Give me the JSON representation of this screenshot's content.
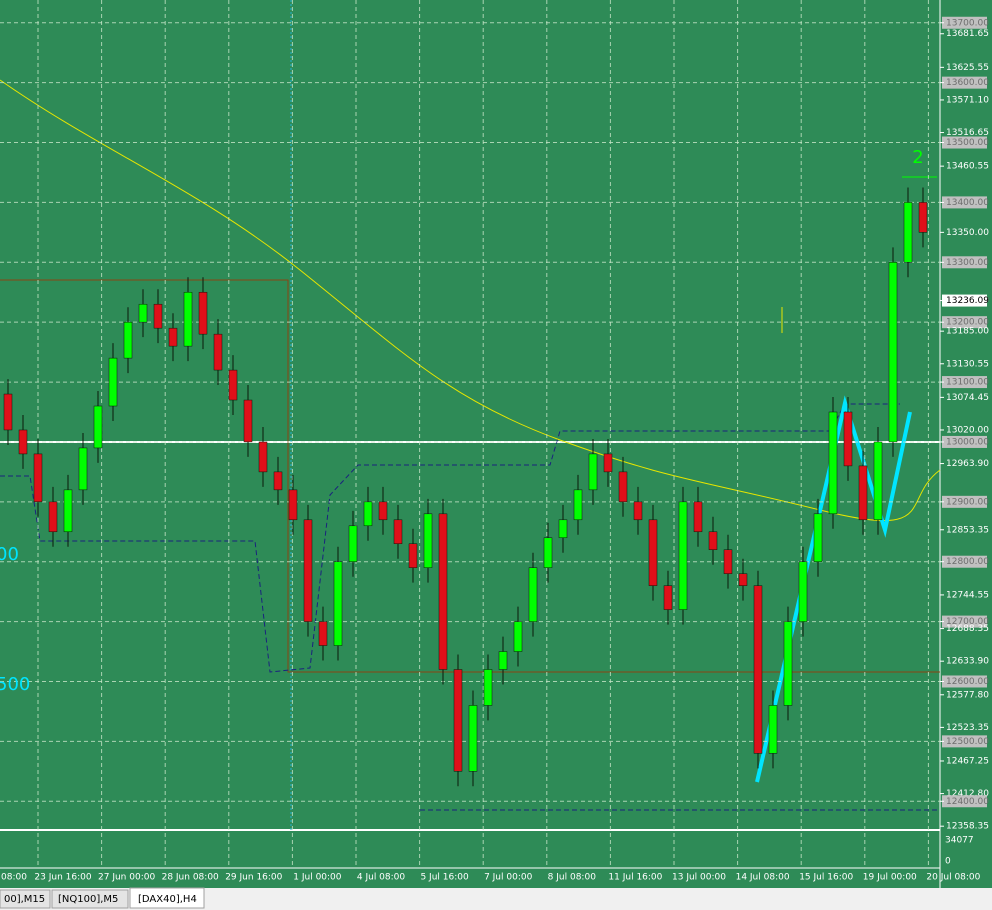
{
  "chart_data": {
    "type": "candlestick",
    "ylim": [
      12352,
      13738
    ],
    "yticks": [
      {
        "value": 13700,
        "label": "13700.00"
      },
      {
        "value": 13681.65,
        "label": "13681.65"
      },
      {
        "value": 13625.55,
        "label": "13625.55"
      },
      {
        "value": 13600,
        "label": "13600.00"
      },
      {
        "value": 13571.1,
        "label": "13571.10"
      },
      {
        "value": 13516.65,
        "label": "13516.65"
      },
      {
        "value": 13500,
        "label": "13500.00"
      },
      {
        "value": 13460.55,
        "label": "13460.55"
      },
      {
        "value": 13400,
        "label": "13400.00"
      },
      {
        "value": 13350,
        "label": "13350.00"
      },
      {
        "value": 13300,
        "label": "13300.00"
      },
      {
        "value": 13236.09,
        "label": "13236.09"
      },
      {
        "value": 13200,
        "label": "13200.00"
      },
      {
        "value": 13185,
        "label": "13185.00"
      },
      {
        "value": 13130.55,
        "label": "13130.55"
      },
      {
        "value": 13100,
        "label": "13100.00"
      },
      {
        "value": 13074.45,
        "label": "13074.45"
      },
      {
        "value": 13020,
        "label": "13020.00"
      },
      {
        "value": 13000,
        "label": "13000.00"
      },
      {
        "value": 12963.9,
        "label": "12963.90"
      },
      {
        "value": 12900,
        "label": "12900.00"
      },
      {
        "value": 12853.35,
        "label": "12853.35"
      },
      {
        "value": 12800,
        "label": "12800.00"
      },
      {
        "value": 12744.55,
        "label": "12744.55"
      },
      {
        "value": 12700,
        "label": "12700.00"
      },
      {
        "value": 12688.35,
        "label": "12688.35"
      },
      {
        "value": 12633.9,
        "label": "12633.90"
      },
      {
        "value": 12600,
        "label": "12600.00"
      },
      {
        "value": 12577.8,
        "label": "12577.80"
      },
      {
        "value": 12523.35,
        "label": "12523.35"
      },
      {
        "value": 12500,
        "label": "12500.00"
      },
      {
        "value": 12467.25,
        "label": "12467.25"
      },
      {
        "value": 12412.8,
        "label": "12412.80"
      },
      {
        "value": 12400,
        "label": "12400.00"
      },
      {
        "value": 12358.35,
        "label": "12358.35"
      }
    ],
    "current_price": {
      "value": 13236.09,
      "label": "13236.09"
    },
    "categories": [
      "08:00",
      "23 Jun 16:00",
      "27 Jun 00:00",
      "28 Jun 08:00",
      "29 Jun 16:00",
      "1 Jul 00:00",
      "4 Jul 08:00",
      "5 Jul 16:00",
      "7 Jul 00:00",
      "8 Jul 08:00",
      "11 Jul 16:00",
      "13 Jul 00:00",
      "14 Jul 08:00",
      "15 Jul 16:00",
      "19 Jul 00:00",
      "20 Jul 08:00"
    ],
    "candles": {
      "open": [
        13080,
        13020,
        12980,
        12900,
        12850,
        12920,
        12990,
        13060,
        13140,
        13200,
        13230,
        13190,
        13160,
        13250,
        13180,
        13120,
        13070,
        13000,
        12950,
        12920,
        12870,
        12700,
        12660,
        12800,
        12860,
        12900,
        12870,
        12830,
        12790,
        12880,
        12620,
        12450,
        12560,
        12620,
        12650,
        12700,
        12790,
        12840,
        12870,
        12920,
        12980,
        12950,
        12900,
        12870,
        12760,
        12720,
        12900,
        12850,
        12820,
        12780,
        12760,
        12480,
        12560,
        12700,
        12800,
        12880,
        13050,
        12960,
        12870,
        13000,
        13300,
        13400
      ],
      "high": [
        13105,
        13045,
        13005,
        12925,
        12945,
        13015,
        13085,
        13165,
        13225,
        13255,
        13255,
        13215,
        13275,
        13275,
        13205,
        13145,
        13095,
        13025,
        12975,
        12945,
        12895,
        12725,
        12825,
        12885,
        12925,
        12925,
        12895,
        12855,
        12905,
        12905,
        12645,
        12585,
        12645,
        12675,
        12725,
        12815,
        12865,
        12895,
        12945,
        13005,
        13005,
        12975,
        12925,
        12895,
        12785,
        12925,
        12925,
        12875,
        12845,
        12805,
        12785,
        12585,
        12725,
        12825,
        12905,
        13075,
        13075,
        12985,
        13025,
        13325,
        13425,
        13425
      ],
      "low": [
        12995,
        12955,
        12875,
        12825,
        12825,
        12895,
        12965,
        13035,
        13115,
        13175,
        13165,
        13135,
        13135,
        13155,
        13095,
        13045,
        12975,
        12925,
        12895,
        12845,
        12675,
        12635,
        12635,
        12775,
        12835,
        12845,
        12805,
        12765,
        12765,
        12595,
        12425,
        12425,
        12535,
        12595,
        12625,
        12675,
        12765,
        12815,
        12845,
        12895,
        12925,
        12875,
        12845,
        12735,
        12695,
        12695,
        12825,
        12795,
        12755,
        12735,
        12455,
        12455,
        12535,
        12675,
        12775,
        12855,
        12935,
        12845,
        12845,
        12975,
        13275,
        13325
      ],
      "close": [
        13020,
        12980,
        12900,
        12850,
        12920,
        12990,
        13060,
        13140,
        13200,
        13230,
        13190,
        13160,
        13250,
        13180,
        13120,
        13070,
        13000,
        12950,
        12920,
        12870,
        12700,
        12660,
        12800,
        12860,
        12900,
        12870,
        12830,
        12790,
        12880,
        12620,
        12450,
        12560,
        12620,
        12650,
        12700,
        12790,
        12840,
        12870,
        12920,
        12980,
        12950,
        12900,
        12870,
        12760,
        12720,
        12900,
        12850,
        12820,
        12780,
        12760,
        12480,
        12560,
        12700,
        12800,
        12880,
        13050,
        12960,
        12870,
        13000,
        13300,
        13400,
        13350
      ]
    },
    "up_color": "#00ff00",
    "down_color": "#e0101a",
    "grid": true,
    "volume_labels": [
      "34077",
      "0"
    ],
    "annotations": [
      "2",
      "00",
      "500"
    ]
  },
  "tabs": [
    "00],M15",
    "[NQ100],M5",
    "[DAX40],H4"
  ]
}
